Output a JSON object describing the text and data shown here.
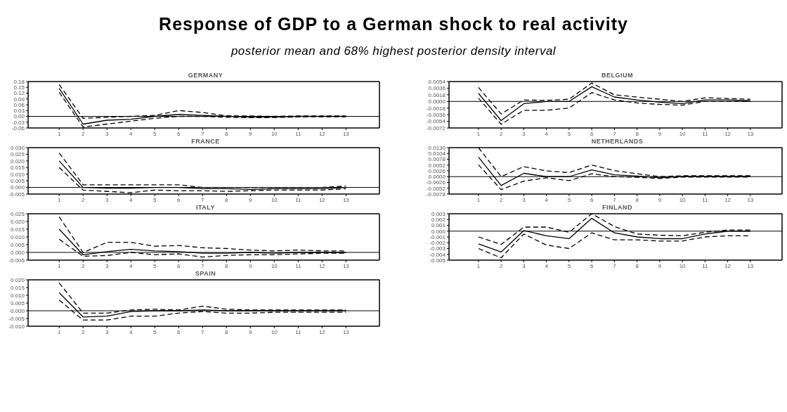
{
  "chart_data": [
    {
      "type": "other",
      "title": "Response of GDP to a German shock to real activity",
      "subtitle": "posterior mean and 68% highest posterior density interval"
    },
    {
      "type": "line",
      "title": "GERMANY",
      "marker": "none",
      "x": [
        1,
        2,
        3,
        4,
        5,
        6,
        7,
        8,
        9,
        10,
        11,
        12,
        13
      ],
      "xlim": [
        -0.3,
        14.4
      ],
      "xticks": [
        1,
        2,
        3,
        4,
        5,
        6,
        7,
        8,
        9,
        10,
        11,
        12,
        13
      ],
      "ylim": [
        -0.06,
        0.18
      ],
      "yticks": [
        {
          "value": -0.06,
          "label": "-0.06"
        },
        {
          "value": -0.03,
          "label": "-0.03"
        },
        {
          "value": 0,
          "label": "0.00"
        },
        {
          "value": 0.03,
          "label": "0.03"
        },
        {
          "value": 0.06,
          "label": "0.06"
        },
        {
          "value": 0.09,
          "label": "0.09"
        },
        {
          "value": 0.12,
          "label": "0.12"
        },
        {
          "value": 0.15,
          "label": "0.15"
        },
        {
          "value": 0.18,
          "label": "0.18"
        }
      ],
      "ref_lines": [
        {
          "axis": "y",
          "value": 0,
          "color": "#000000"
        }
      ],
      "series": [
        {
          "color": "#000000",
          "line_style": "dashed",
          "values": [
            0.165,
            -0.01,
            -0.005,
            0,
            0.005,
            0.03,
            0.02,
            0.003,
            0.002,
            0,
            0.002,
            0.002,
            0.002
          ]
        },
        {
          "color": "#000000",
          "line_style": "solid",
          "values": [
            0.145,
            -0.04,
            -0.02,
            -0.015,
            0,
            0.01,
            0.005,
            0,
            -0.003,
            -0.003,
            0,
            0,
            0
          ]
        },
        {
          "color": "#000000",
          "line_style": "dashed",
          "values": [
            0.125,
            -0.055,
            -0.04,
            -0.025,
            -0.01,
            0,
            0,
            -0.005,
            -0.007,
            -0.006,
            -0.003,
            -0.002,
            -0.002
          ]
        }
      ]
    },
    {
      "type": "line",
      "title": "BELGIUM",
      "marker": "none",
      "x": [
        1,
        2,
        3,
        4,
        5,
        6,
        7,
        8,
        9,
        10,
        11,
        12,
        13
      ],
      "xlim": [
        -0.3,
        14.4
      ],
      "xticks": [
        1,
        2,
        3,
        4,
        5,
        6,
        7,
        8,
        9,
        10,
        11,
        12,
        13
      ],
      "ylim": [
        -0.0072,
        0.0054
      ],
      "yticks": [
        {
          "value": -0.0072,
          "label": "-0.0072"
        },
        {
          "value": -0.0054,
          "label": "-0.0054"
        },
        {
          "value": -0.0036,
          "label": "-0.0036"
        },
        {
          "value": -0.0018,
          "label": "-0.0018"
        },
        {
          "value": 0,
          "label": "0.0000"
        },
        {
          "value": 0.0018,
          "label": "0.0018"
        },
        {
          "value": 0.0036,
          "label": "0.0036"
        },
        {
          "value": 0.0054,
          "label": "0.0054"
        }
      ],
      "ref_lines": [
        {
          "axis": "y",
          "value": 0,
          "color": "#000000"
        }
      ],
      "series": [
        {
          "color": "#000000",
          "line_style": "dashed",
          "values": [
            0.0038,
            -0.0034,
            0.0004,
            0.0003,
            0.0006,
            0.005,
            0.0018,
            0.0012,
            0.0006,
            0,
            0.001,
            0.0008,
            0.0006
          ]
        },
        {
          "color": "#000000",
          "line_style": "solid",
          "values": [
            0.0022,
            -0.0052,
            -0.0006,
            0,
            0,
            0.004,
            0.0012,
            0.0004,
            -0.0002,
            -0.0006,
            0.0004,
            0.0004,
            0.0002
          ]
        },
        {
          "color": "#000000",
          "line_style": "dashed",
          "values": [
            0.0009,
            -0.0062,
            -0.0024,
            -0.0024,
            -0.0018,
            0.0024,
            0.0004,
            -0.0004,
            -0.0008,
            -0.001,
            0,
            0,
            0
          ]
        }
      ]
    },
    {
      "type": "line",
      "title": "FRANCE",
      "marker": "none",
      "x": [
        1,
        2,
        3,
        4,
        5,
        6,
        7,
        8,
        9,
        10,
        11,
        12,
        13
      ],
      "xlim": [
        -0.3,
        14.4
      ],
      "xticks": [
        1,
        2,
        3,
        4,
        5,
        6,
        7,
        8,
        9,
        10,
        11,
        12,
        13
      ],
      "ylim": [
        -0.005,
        0.03
      ],
      "yticks": [
        {
          "value": -0.005,
          "label": "-0.005"
        },
        {
          "value": 0,
          "label": "0.000"
        },
        {
          "value": 0.005,
          "label": "0.005"
        },
        {
          "value": 0.01,
          "label": "0.010"
        },
        {
          "value": 0.015,
          "label": "0.015"
        },
        {
          "value": 0.02,
          "label": "0.020"
        },
        {
          "value": 0.025,
          "label": "0.025"
        },
        {
          "value": 0.03,
          "label": "0.030"
        }
      ],
      "ref_lines": [
        {
          "axis": "y",
          "value": 0,
          "color": "#000000"
        }
      ],
      "series": [
        {
          "color": "#000000",
          "line_style": "dashed",
          "values": [
            0.026,
            0.002,
            0.002,
            0.002,
            0.002,
            0.002,
            0,
            0,
            0,
            0,
            0,
            0,
            0.001
          ]
        },
        {
          "color": "#000000",
          "line_style": "solid",
          "values": [
            0.02,
            0,
            -0.0005,
            -0.0005,
            0,
            0,
            -0.001,
            -0.001,
            -0.0015,
            -0.001,
            -0.001,
            -0.001,
            0
          ]
        },
        {
          "color": "#000000",
          "line_style": "dashed",
          "values": [
            0.015,
            -0.002,
            -0.003,
            -0.004,
            -0.002,
            -0.0025,
            -0.0025,
            -0.003,
            -0.0025,
            -0.002,
            -0.002,
            -0.002,
            -0.001
          ]
        }
      ]
    },
    {
      "type": "line",
      "title": "NETHERLANDS",
      "marker": "none",
      "x": [
        1,
        2,
        3,
        4,
        5,
        6,
        7,
        8,
        9,
        10,
        11,
        12,
        13
      ],
      "xlim": [
        -0.3,
        14.4
      ],
      "xticks": [
        1,
        2,
        3,
        4,
        5,
        6,
        7,
        8,
        9,
        10,
        11,
        12,
        13
      ],
      "ylim": [
        -0.0078,
        0.013
      ],
      "yticks": [
        {
          "value": -0.0078,
          "label": "-0.0078"
        },
        {
          "value": -0.0052,
          "label": "-0.0052"
        },
        {
          "value": -0.0026,
          "label": "-0.0026"
        },
        {
          "value": 0,
          "label": "0.0000"
        },
        {
          "value": 0.0026,
          "label": "0.0026"
        },
        {
          "value": 0.0052,
          "label": "0.0052"
        },
        {
          "value": 0.0078,
          "label": "0.0078"
        },
        {
          "value": 0.0104,
          "label": "0.0104"
        },
        {
          "value": 0.013,
          "label": "0.0130"
        }
      ],
      "ref_lines": [
        {
          "axis": "y",
          "value": 0,
          "color": "#000000"
        }
      ],
      "series": [
        {
          "color": "#000000",
          "line_style": "dashed",
          "values": [
            0.013,
            0,
            0.0045,
            0.0026,
            0.0018,
            0.0052,
            0.0027,
            0.0013,
            0,
            0.0004,
            0.0004,
            0.0004,
            0.0004
          ]
        },
        {
          "color": "#000000",
          "line_style": "solid",
          "values": [
            0.0088,
            -0.004,
            0.0015,
            0,
            0,
            0.003,
            0.0008,
            0.0003,
            -0.0005,
            0.0001,
            0.0001,
            0.0001,
            0.0001
          ]
        },
        {
          "color": "#000000",
          "line_style": "dashed",
          "values": [
            0.0053,
            -0.0058,
            -0.002,
            -0.0005,
            -0.0018,
            0.0013,
            0,
            -0.0003,
            -0.0008,
            -0.0002,
            -0.0002,
            -0.0002,
            -0.0002
          ]
        }
      ]
    },
    {
      "type": "line",
      "title": "ITALY",
      "marker": "none",
      "x": [
        1,
        2,
        3,
        4,
        5,
        6,
        7,
        8,
        9,
        10,
        11,
        12,
        13
      ],
      "xlim": [
        -0.3,
        14.4
      ],
      "xticks": [
        1,
        2,
        3,
        4,
        5,
        6,
        7,
        8,
        9,
        10,
        11,
        12,
        13
      ],
      "ylim": [
        -0.005,
        0.025
      ],
      "yticks": [
        {
          "value": -0.005,
          "label": "-0.005"
        },
        {
          "value": 0,
          "label": "0.000"
        },
        {
          "value": 0.005,
          "label": "0.005"
        },
        {
          "value": 0.01,
          "label": "0.010"
        },
        {
          "value": 0.015,
          "label": "0.015"
        },
        {
          "value": 0.02,
          "label": "0.020"
        },
        {
          "value": 0.025,
          "label": "0.025"
        }
      ],
      "ref_lines": [
        {
          "axis": "y",
          "value": 0,
          "color": "#000000"
        }
      ],
      "series": [
        {
          "color": "#000000",
          "line_style": "dashed",
          "values": [
            0.023,
            0,
            0.0065,
            0.0065,
            0.004,
            0.0045,
            0.003,
            0.0025,
            0.0015,
            0.001,
            0.0015,
            0.001,
            0.001
          ]
        },
        {
          "color": "#000000",
          "line_style": "solid",
          "values": [
            0.015,
            -0.0015,
            0.0005,
            0.002,
            0.001,
            0.0005,
            -0.0005,
            -0.0005,
            0,
            -0.0005,
            0,
            0,
            0
          ]
        },
        {
          "color": "#000000",
          "line_style": "dashed",
          "values": [
            0.0085,
            -0.0025,
            -0.002,
            0,
            -0.0015,
            -0.001,
            -0.003,
            -0.002,
            -0.0015,
            -0.0015,
            -0.001,
            -0.0005,
            -0.0005
          ]
        }
      ]
    },
    {
      "type": "line",
      "title": "FINLAND",
      "marker": "none",
      "x": [
        1,
        2,
        3,
        4,
        5,
        6,
        7,
        8,
        9,
        10,
        11,
        12,
        13
      ],
      "xlim": [
        -0.3,
        14.4
      ],
      "xticks": [
        1,
        2,
        3,
        4,
        5,
        6,
        7,
        8,
        9,
        10,
        11,
        12,
        13
      ],
      "ylim": [
        -0.005,
        0.003
      ],
      "yticks": [
        {
          "value": -0.005,
          "label": "-0.005"
        },
        {
          "value": -0.004,
          "label": "-0.004"
        },
        {
          "value": -0.003,
          "label": "-0.003"
        },
        {
          "value": -0.002,
          "label": "-0.002"
        },
        {
          "value": -0.001,
          "label": "-0.001"
        },
        {
          "value": 0,
          "label": "0.000"
        },
        {
          "value": 0.001,
          "label": "0.001"
        },
        {
          "value": 0.002,
          "label": "0.002"
        },
        {
          "value": 0.003,
          "label": "0.003"
        }
      ],
      "ref_lines": [
        {
          "axis": "y",
          "value": 0,
          "color": "#000000"
        }
      ],
      "series": [
        {
          "color": "#000000",
          "line_style": "dashed",
          "values": [
            -0.001,
            -0.0023,
            0.0007,
            0.0007,
            -0.0002,
            0.003,
            0.0008,
            -0.0005,
            -0.0007,
            -0.0008,
            -0.0002,
            0.0002,
            0.0002
          ]
        },
        {
          "color": "#000000",
          "line_style": "solid",
          "values": [
            -0.0022,
            -0.0036,
            0.0001,
            -0.0008,
            -0.0013,
            0.0022,
            -0.0003,
            -0.001,
            -0.0013,
            -0.0013,
            -0.0005,
            0,
            0
          ]
        },
        {
          "color": "#000000",
          "line_style": "dashed",
          "values": [
            -0.003,
            -0.0046,
            -0.0005,
            -0.0024,
            -0.003,
            -0.0003,
            -0.0015,
            -0.0015,
            -0.0017,
            -0.0017,
            -0.001,
            -0.0008,
            -0.0008
          ]
        }
      ]
    },
    {
      "type": "line",
      "title": "SPAIN",
      "marker": "none",
      "x": [
        1,
        2,
        3,
        4,
        5,
        6,
        7,
        8,
        9,
        10,
        11,
        12,
        13
      ],
      "xlim": [
        -0.3,
        14.4
      ],
      "xticks": [
        1,
        2,
        3,
        4,
        5,
        6,
        7,
        8,
        9,
        10,
        11,
        12,
        13
      ],
      "ylim": [
        -0.01,
        0.02
      ],
      "yticks": [
        {
          "value": -0.01,
          "label": "-0.010"
        },
        {
          "value": -0.005,
          "label": "-0.005"
        },
        {
          "value": 0,
          "label": "0.000"
        },
        {
          "value": 0.005,
          "label": "0.005"
        },
        {
          "value": 0.01,
          "label": "0.010"
        },
        {
          "value": 0.015,
          "label": "0.015"
        },
        {
          "value": 0.02,
          "label": "0.020"
        }
      ],
      "ref_lines": [
        {
          "axis": "y",
          "value": 0,
          "color": "#000000"
        }
      ],
      "series": [
        {
          "color": "#000000",
          "line_style": "dashed",
          "values": [
            0.018,
            -0.0015,
            -0.0015,
            0.0005,
            0.001,
            0.0005,
            0.003,
            0.001,
            0.0005,
            0.0005,
            0.0005,
            0.0005,
            0.0005
          ]
        },
        {
          "color": "#000000",
          "line_style": "solid",
          "values": [
            0.0117,
            -0.004,
            -0.0035,
            -0.0005,
            0,
            0,
            0.0005,
            0,
            0,
            0,
            0,
            0,
            0
          ]
        },
        {
          "color": "#000000",
          "line_style": "dashed",
          "values": [
            0.0069,
            -0.006,
            -0.006,
            -0.0035,
            -0.0035,
            -0.0015,
            -0.0005,
            -0.0015,
            -0.0015,
            -0.001,
            -0.001,
            -0.001,
            -0.001
          ]
        }
      ]
    }
  ]
}
